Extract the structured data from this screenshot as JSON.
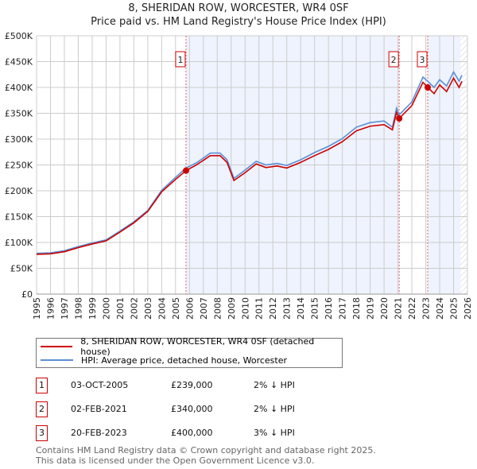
{
  "chart_data": {
    "type": "line",
    "title": "8, SHERIDAN ROW, WORCESTER, WR4 0SF",
    "subtitle": "Price paid vs. HM Land Registry's House Price Index (HPI)",
    "xlim": [
      1995,
      2026
    ],
    "ylim": [
      0,
      500000
    ],
    "x_ticks": [
      "1995",
      "1996",
      "1997",
      "1998",
      "1999",
      "2000",
      "2001",
      "2002",
      "2003",
      "2004",
      "2005",
      "2006",
      "2007",
      "2008",
      "2009",
      "2010",
      "2011",
      "2012",
      "2013",
      "2014",
      "2015",
      "2016",
      "2017",
      "2018",
      "2019",
      "2020",
      "2021",
      "2022",
      "2023",
      "2024",
      "2025",
      "2026"
    ],
    "y_ticks": [
      {
        "v": 0,
        "l": "£0"
      },
      {
        "v": 50000,
        "l": "£50K"
      },
      {
        "v": 100000,
        "l": "£100K"
      },
      {
        "v": 150000,
        "l": "£150K"
      },
      {
        "v": 200000,
        "l": "£200K"
      },
      {
        "v": 250000,
        "l": "£250K"
      },
      {
        "v": 300000,
        "l": "£300K"
      },
      {
        "v": 350000,
        "l": "£350K"
      },
      {
        "v": 400000,
        "l": "£400K"
      },
      {
        "v": 450000,
        "l": "£450K"
      },
      {
        "v": 500000,
        "l": "£500K"
      }
    ],
    "grid": true,
    "series": [
      {
        "name": "8, SHERIDAN ROW, WORCESTER, WR4 0SF (detached house)",
        "color": "#cc0000",
        "points": [
          [
            1995,
            77000
          ],
          [
            1996,
            78000
          ],
          [
            1997,
            82000
          ],
          [
            1998,
            90000
          ],
          [
            1999,
            97000
          ],
          [
            2000,
            103000
          ],
          [
            2001,
            120000
          ],
          [
            2002,
            138000
          ],
          [
            2003,
            160000
          ],
          [
            2004,
            198000
          ],
          [
            2005,
            222000
          ],
          [
            2005.75,
            239000
          ],
          [
            2006.5,
            250000
          ],
          [
            2007.5,
            268000
          ],
          [
            2008.2,
            268000
          ],
          [
            2008.7,
            255000
          ],
          [
            2009.2,
            220000
          ],
          [
            2010,
            235000
          ],
          [
            2010.8,
            252000
          ],
          [
            2011.5,
            245000
          ],
          [
            2012.3,
            248000
          ],
          [
            2013,
            244000
          ],
          [
            2014,
            255000
          ],
          [
            2015,
            268000
          ],
          [
            2016,
            280000
          ],
          [
            2017,
            295000
          ],
          [
            2018,
            316000
          ],
          [
            2019,
            325000
          ],
          [
            2020,
            328000
          ],
          [
            2020.6,
            318000
          ],
          [
            2020.9,
            352000
          ],
          [
            2021.09,
            340000
          ],
          [
            2022,
            365000
          ],
          [
            2022.8,
            410000
          ],
          [
            2023.14,
            400000
          ],
          [
            2023.6,
            388000
          ],
          [
            2024,
            405000
          ],
          [
            2024.5,
            392000
          ],
          [
            2025,
            418000
          ],
          [
            2025.4,
            400000
          ],
          [
            2025.6,
            412000
          ]
        ]
      },
      {
        "name": "HPI: Average price, detached house, Worcester",
        "color": "#5b8fd6",
        "points": [
          [
            1995,
            79000
          ],
          [
            1996,
            80000
          ],
          [
            1997,
            84000
          ],
          [
            1998,
            92000
          ],
          [
            1999,
            99000
          ],
          [
            2000,
            105000
          ],
          [
            2001,
            122000
          ],
          [
            2002,
            140000
          ],
          [
            2003,
            162000
          ],
          [
            2004,
            201000
          ],
          [
            2005,
            226000
          ],
          [
            2005.75,
            244000
          ],
          [
            2006.5,
            254000
          ],
          [
            2007.5,
            273000
          ],
          [
            2008.2,
            273000
          ],
          [
            2008.7,
            260000
          ],
          [
            2009.2,
            224000
          ],
          [
            2010,
            240000
          ],
          [
            2010.8,
            257000
          ],
          [
            2011.5,
            250000
          ],
          [
            2012.3,
            253000
          ],
          [
            2013,
            249000
          ],
          [
            2014,
            260000
          ],
          [
            2015,
            274000
          ],
          [
            2016,
            286000
          ],
          [
            2017,
            301000
          ],
          [
            2018,
            323000
          ],
          [
            2019,
            332000
          ],
          [
            2020,
            335000
          ],
          [
            2020.6,
            323000
          ],
          [
            2020.9,
            360000
          ],
          [
            2021.09,
            347000
          ],
          [
            2022,
            372000
          ],
          [
            2022.8,
            420000
          ],
          [
            2023.14,
            412000
          ],
          [
            2023.6,
            400000
          ],
          [
            2024,
            415000
          ],
          [
            2024.5,
            403000
          ],
          [
            2025,
            430000
          ],
          [
            2025.4,
            412000
          ],
          [
            2025.6,
            424000
          ]
        ]
      }
    ],
    "sales": [
      {
        "label": "1",
        "x": 2005.75,
        "price": 239000
      },
      {
        "label": "2",
        "x": 2021.09,
        "price": 340000
      },
      {
        "label": "3",
        "x": 2023.14,
        "price": 400000
      }
    ],
    "shaded_ranges": [
      [
        2005.75,
        2021.09
      ],
      [
        2023.14,
        2025.5
      ]
    ],
    "forecast_from": 2025.5,
    "legend": "below"
  },
  "table": [
    {
      "num": "1",
      "date": "03-OCT-2005",
      "price": "£239,000",
      "diff": "2% ↓ HPI"
    },
    {
      "num": "2",
      "date": "02-FEB-2021",
      "price": "£340,000",
      "diff": "2% ↓ HPI"
    },
    {
      "num": "3",
      "date": "20-FEB-2023",
      "price": "£400,000",
      "diff": "3% ↓ HPI"
    }
  ],
  "footer": [
    "Contains HM Land Registry data © Crown copyright and database right 2025.",
    "This data is licensed under the Open Government Licence v3.0."
  ]
}
